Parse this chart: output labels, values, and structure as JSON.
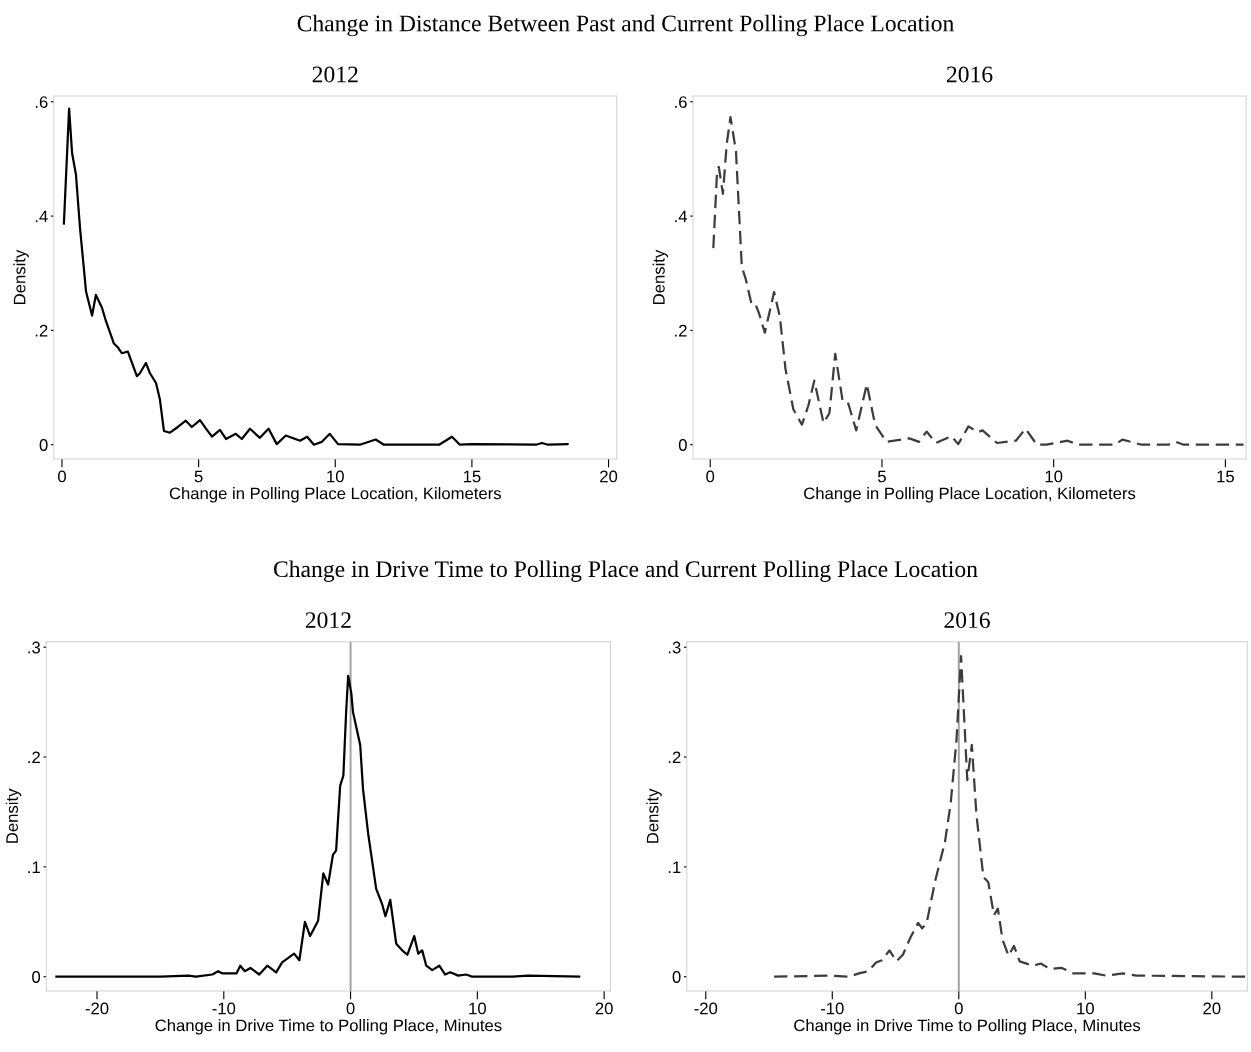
{
  "chart_data": [
    {
      "type": "line",
      "title": "2012",
      "annotations": [
        "Change in Distance Between Past and Current Polling Place Location"
      ],
      "xlabel": "Change in Polling Place Location, Kilometers",
      "ylabel": "Density",
      "xlim": [
        -0.3,
        20.3
      ],
      "xticks": [
        0,
        5,
        10,
        15,
        20
      ],
      "ylim": [
        -0.025,
        0.61
      ],
      "yticks": [
        {
          "value": 0,
          "label": "0"
        },
        {
          "value": 0.2,
          "label": ".2"
        },
        {
          "value": 0.4,
          "label": ".4"
        },
        {
          "value": 0.6,
          "label": ".6"
        }
      ],
      "grid": false,
      "legend": false,
      "line_style": "solid",
      "series": [
        {
          "color": "#000000",
          "x": [
            0.07,
            0.26,
            0.37,
            0.51,
            0.66,
            0.88,
            1.1,
            1.24,
            1.46,
            1.61,
            1.9,
            2.05,
            2.19,
            2.41,
            2.74,
            2.85,
            3.07,
            3.22,
            3.44,
            3.58,
            3.73,
            3.95,
            4.24,
            4.53,
            4.75,
            5.05,
            5.27,
            5.49,
            5.78,
            6.0,
            6.36,
            6.58,
            6.88,
            7.24,
            7.56,
            7.86,
            8.19,
            8.71,
            8.97,
            9.22,
            9.51,
            9.8,
            10.1,
            10.9,
            11.48,
            11.78,
            13.8,
            14.27,
            14.56,
            15.0,
            17.34,
            17.56,
            17.78,
            18.5
          ],
          "values": [
            0.387,
            0.588,
            0.51,
            0.473,
            0.379,
            0.268,
            0.226,
            0.262,
            0.24,
            0.216,
            0.177,
            0.17,
            0.16,
            0.163,
            0.12,
            0.125,
            0.143,
            0.125,
            0.108,
            0.08,
            0.024,
            0.021,
            0.031,
            0.042,
            0.031,
            0.043,
            0.028,
            0.014,
            0.026,
            0.01,
            0.019,
            0.01,
            0.028,
            0.012,
            0.028,
            0.001,
            0.016,
            0.007,
            0.014,
            0,
            0.005,
            0.019,
            0.001,
            0,
            0.009,
            0,
            0,
            0.014,
            0,
            0.001,
            0,
            0.003,
            0,
            0.001
          ]
        }
      ]
    },
    {
      "type": "line",
      "title": "2016",
      "xlabel": "Change in Polling Place Location, Kilometers",
      "ylabel": "Density",
      "xlim": [
        -0.5,
        15.6
      ],
      "xticks": [
        0,
        5,
        10,
        15
      ],
      "ylim": [
        -0.025,
        0.61
      ],
      "yticks": [
        {
          "value": 0,
          "label": "0"
        },
        {
          "value": 0.2,
          "label": ".2"
        },
        {
          "value": 0.4,
          "label": ".4"
        },
        {
          "value": 0.6,
          "label": ".6"
        }
      ],
      "grid": false,
      "legend": false,
      "line_style": "dashed",
      "series": [
        {
          "color": "#3c3c3c",
          "x": [
            0.09,
            0.2,
            0.25,
            0.37,
            0.48,
            0.59,
            0.75,
            0.92,
            1.03,
            1.2,
            1.31,
            1.42,
            1.59,
            1.86,
            2.03,
            2.19,
            2.42,
            2.67,
            2.86,
            3.03,
            3.3,
            3.47,
            3.64,
            3.86,
            4.02,
            4.25,
            4.56,
            4.8,
            5.13,
            5.8,
            6.08,
            6.3,
            6.57,
            7.02,
            7.22,
            7.52,
            7.79,
            7.93,
            8.35,
            8.9,
            9.18,
            9.51,
            9.79,
            10.4,
            10.73,
            11.79,
            12.0,
            12.56,
            13.34,
            13.56,
            13.78,
            15.53
          ],
          "values": [
            0.344,
            0.479,
            0.486,
            0.439,
            0.526,
            0.573,
            0.513,
            0.311,
            0.291,
            0.247,
            0.247,
            0.23,
            0.196,
            0.267,
            0.223,
            0.133,
            0.062,
            0.035,
            0.069,
            0.112,
            0.038,
            0.055,
            0.159,
            0.075,
            0.072,
            0.025,
            0.106,
            0.035,
            0.005,
            0.011,
            0.005,
            0.023,
            0.003,
            0.015,
            0.001,
            0.032,
            0.022,
            0.025,
            0.003,
            0.007,
            0.028,
            0,
            0,
            0.007,
            0,
            0,
            0.009,
            0,
            0,
            0.005,
            0,
            0
          ]
        }
      ]
    },
    {
      "type": "line",
      "title": "2012",
      "annotations": [
        "Change in Drive Time to Polling Place and Current Polling Place Location"
      ],
      "xlabel": "Change in Drive Time to Polling Place, Minutes",
      "ylabel": "Density",
      "xlim": [
        -24,
        20.5
      ],
      "xticks": [
        -20,
        -10,
        0,
        10,
        20
      ],
      "ylim": [
        -0.013,
        0.305
      ],
      "yticks": [
        {
          "value": 0,
          "label": "0"
        },
        {
          "value": 0.1,
          "label": ".1"
        },
        {
          "value": 0.2,
          "label": ".2"
        },
        {
          "value": 0.3,
          "label": ".3"
        }
      ],
      "grid": false,
      "legend": false,
      "line_style": "solid",
      "ref_lines": [
        {
          "axis": "x",
          "value": 0,
          "color": "#a0a0a0"
        }
      ],
      "series": [
        {
          "color": "#000000",
          "x": [
            -23.2,
            -15.0,
            -12.8,
            -12.2,
            -10.9,
            -10.45,
            -10.1,
            -9.0,
            -8.7,
            -8.34,
            -7.9,
            -7.2,
            -6.57,
            -5.87,
            -5.4,
            -4.45,
            -4.04,
            -3.6,
            -3.19,
            -2.56,
            -2.15,
            -1.77,
            -1.39,
            -1.14,
            -0.82,
            -0.57,
            -0.35,
            -0.19,
            0.06,
            0.19,
            0.76,
            0.98,
            1.39,
            2.02,
            2.49,
            2.75,
            3.13,
            3.6,
            4.07,
            4.48,
            5.02,
            5.34,
            5.65,
            5.97,
            6.44,
            7.0,
            7.45,
            7.86,
            8.49,
            9.12,
            9.6,
            12.76,
            14.0,
            18.03
          ],
          "values": [
            0,
            0,
            0.001,
            0,
            0.002,
            0.005,
            0.003,
            0.003,
            0.01,
            0.005,
            0.008,
            0.002,
            0.01,
            0.004,
            0.013,
            0.021,
            0.015,
            0.05,
            0.037,
            0.051,
            0.094,
            0.084,
            0.111,
            0.115,
            0.174,
            0.183,
            0.241,
            0.274,
            0.258,
            0.241,
            0.211,
            0.171,
            0.13,
            0.08,
            0.066,
            0.055,
            0.07,
            0.03,
            0.024,
            0.02,
            0.037,
            0.021,
            0.024,
            0.01,
            0.006,
            0.01,
            0.002,
            0.004,
            0.001,
            0.002,
            0,
            0,
            0.001,
            0
          ]
        }
      ]
    },
    {
      "type": "line",
      "title": "2016",
      "xlabel": "Change in Drive Time to Polling Place, Minutes",
      "ylabel": "Density",
      "xlim": [
        -21.5,
        22.8
      ],
      "xticks": [
        -20,
        -10,
        0,
        10,
        20
      ],
      "ylim": [
        -0.013,
        0.305
      ],
      "yticks": [
        {
          "value": 0,
          "label": "0"
        },
        {
          "value": 0.1,
          "label": ".1"
        },
        {
          "value": 0.2,
          "label": ".2"
        },
        {
          "value": 0.3,
          "label": ".3"
        }
      ],
      "grid": false,
      "legend": false,
      "line_style": "dashed",
      "ref_lines": [
        {
          "axis": "x",
          "value": 0,
          "color": "#a0a0a0"
        }
      ],
      "series": [
        {
          "color": "#3c3c3c",
          "x": [
            -14.6,
            -10.2,
            -8.65,
            -7.9,
            -7.14,
            -6.54,
            -6.08,
            -5.48,
            -4.93,
            -4.42,
            -3.81,
            -3.21,
            -2.9,
            -2.54,
            -1.85,
            -1.09,
            -0.64,
            -0.18,
            0.18,
            0.67,
            1.03,
            1.39,
            1.94,
            2.33,
            2.78,
            3.09,
            3.45,
            3.93,
            4.36,
            4.81,
            5.87,
            6.47,
            7.23,
            8.14,
            9.05,
            10.71,
            11.62,
            12.98,
            14.04,
            22.75
          ],
          "values": [
            0,
            0.001,
            0,
            0.003,
            0.005,
            0.013,
            0.015,
            0.024,
            0.014,
            0.02,
            0.036,
            0.049,
            0.044,
            0.049,
            0.088,
            0.123,
            0.158,
            0.216,
            0.292,
            0.179,
            0.211,
            0.148,
            0.091,
            0.086,
            0.056,
            0.062,
            0.034,
            0.019,
            0.028,
            0.014,
            0.01,
            0.012,
            0.007,
            0.008,
            0.003,
            0.003,
            0.001,
            0.003,
            0.001,
            0
          ]
        }
      ]
    }
  ]
}
